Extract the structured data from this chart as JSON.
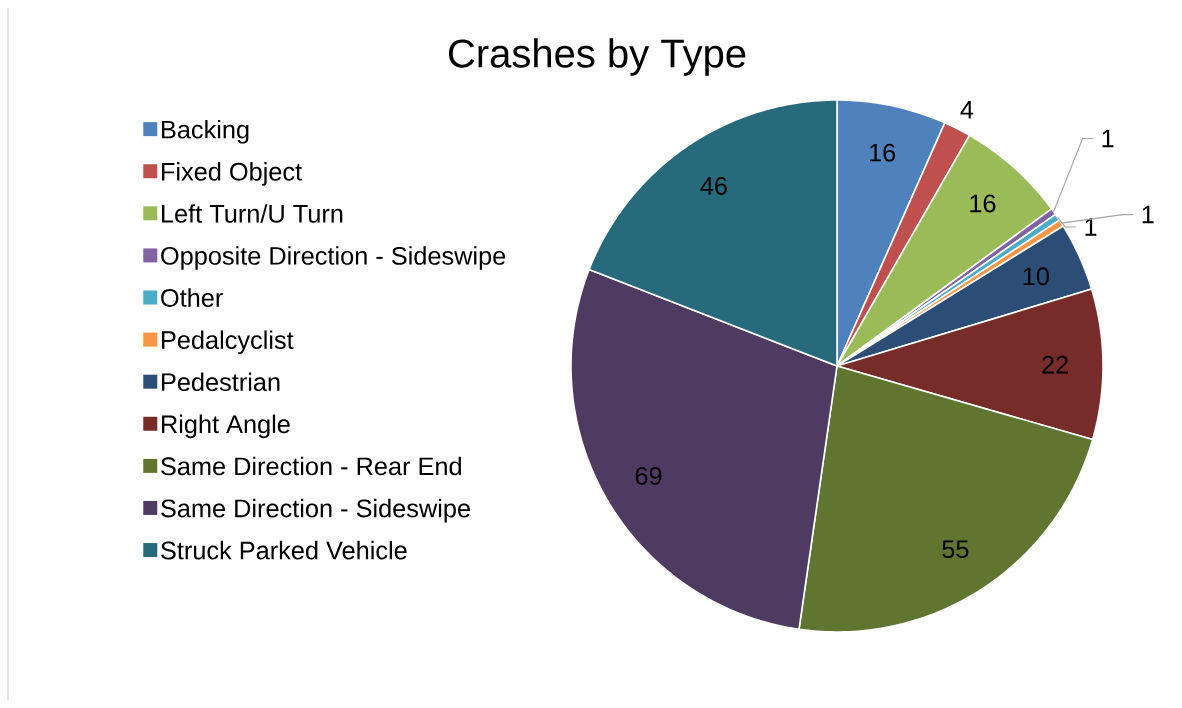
{
  "chart_data": {
    "type": "pie",
    "title": "Crashes by Type",
    "categories": [
      "Backing",
      "Fixed Object",
      "Left Turn/U Turn",
      "Opposite Direction - Sideswipe",
      "Other",
      "Pedalcyclist",
      "Pedestrian",
      "Right Angle",
      "Same Direction - Rear End",
      "Same Direction - Sideswipe",
      "Struck Parked Vehicle"
    ],
    "values": [
      16,
      4,
      16,
      1,
      1,
      1,
      10,
      22,
      55,
      69,
      46
    ],
    "colors": [
      "#4f81bd",
      "#c0504d",
      "#9bbb59",
      "#8064a2",
      "#4bacc6",
      "#f79646",
      "#2c4d75",
      "#772c2a",
      "#5f7530",
      "#4d3b62",
      "#276a7c"
    ],
    "data_labels": true,
    "legend": "left"
  }
}
